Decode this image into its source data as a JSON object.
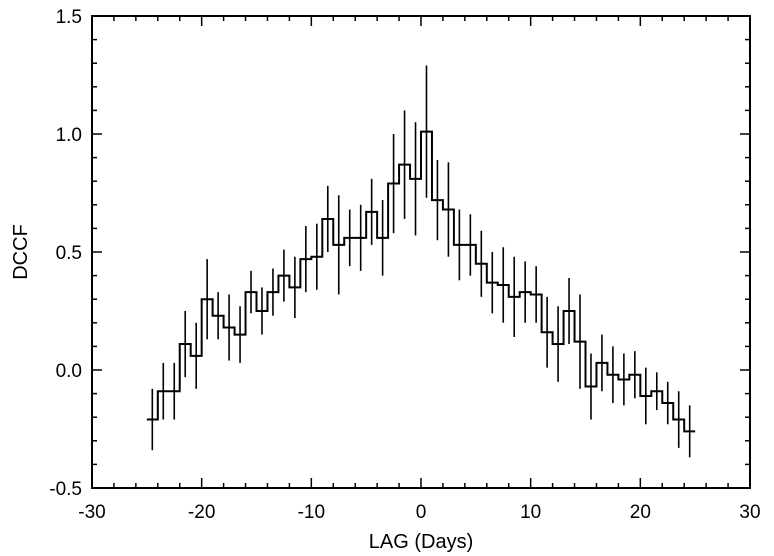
{
  "chart_data": {
    "type": "line",
    "style": "histogram-step-with-error-bars",
    "title": "",
    "xlabel": "LAG (Days)",
    "ylabel": "DCCF",
    "xlim": [
      -30,
      30
    ],
    "ylim": [
      -0.5,
      1.5
    ],
    "xticks": [
      -30,
      -20,
      -10,
      0,
      10,
      20,
      30
    ],
    "xtick_labels": [
      "-30",
      "-20",
      "-10",
      "0",
      "10",
      "20",
      "30"
    ],
    "yticks": [
      -0.5,
      0.0,
      0.5,
      1.0,
      1.5
    ],
    "ytick_labels": [
      "-0.5",
      "0.0",
      "0.5",
      "1.0",
      "1.5"
    ],
    "grid": false,
    "bin_width": 1,
    "series": [
      {
        "name": "DCCF",
        "x": [
          -24.5,
          -23.5,
          -22.5,
          -21.5,
          -20.5,
          -19.5,
          -18.5,
          -17.5,
          -16.5,
          -15.5,
          -14.5,
          -13.5,
          -12.5,
          -11.5,
          -10.5,
          -9.5,
          -8.5,
          -7.5,
          -6.5,
          -5.5,
          -4.5,
          -3.5,
          -2.5,
          -1.5,
          -0.5,
          0.5,
          1.5,
          2.5,
          3.5,
          4.5,
          5.5,
          6.5,
          7.5,
          8.5,
          9.5,
          10.5,
          11.5,
          12.5,
          13.5,
          14.5,
          15.5,
          16.5,
          17.5,
          18.5,
          19.5,
          20.5,
          21.5,
          22.5,
          23.5,
          24.5
        ],
        "y": [
          -0.21,
          -0.09,
          -0.09,
          0.11,
          0.06,
          0.3,
          0.23,
          0.18,
          0.15,
          0.33,
          0.25,
          0.33,
          0.4,
          0.35,
          0.47,
          0.48,
          0.64,
          0.53,
          0.56,
          0.56,
          0.67,
          0.56,
          0.79,
          0.87,
          0.81,
          1.01,
          0.72,
          0.68,
          0.53,
          0.53,
          0.45,
          0.37,
          0.36,
          0.31,
          0.33,
          0.32,
          0.16,
          0.11,
          0.25,
          0.12,
          -0.07,
          0.03,
          -0.02,
          -0.04,
          -0.02,
          -0.11,
          -0.09,
          -0.14,
          -0.21,
          -0.26
        ],
        "err": [
          0.13,
          0.12,
          0.12,
          0.14,
          0.14,
          0.17,
          0.1,
          0.14,
          0.12,
          0.09,
          0.1,
          0.1,
          0.11,
          0.13,
          0.14,
          0.14,
          0.14,
          0.21,
          0.12,
          0.14,
          0.14,
          0.16,
          0.21,
          0.23,
          0.24,
          0.28,
          0.17,
          0.2,
          0.15,
          0.13,
          0.14,
          0.13,
          0.16,
          0.17,
          0.13,
          0.12,
          0.15,
          0.16,
          0.14,
          0.2,
          0.14,
          0.12,
          0.12,
          0.11,
          0.1,
          0.12,
          0.08,
          0.09,
          0.12,
          0.11
        ]
      }
    ]
  }
}
